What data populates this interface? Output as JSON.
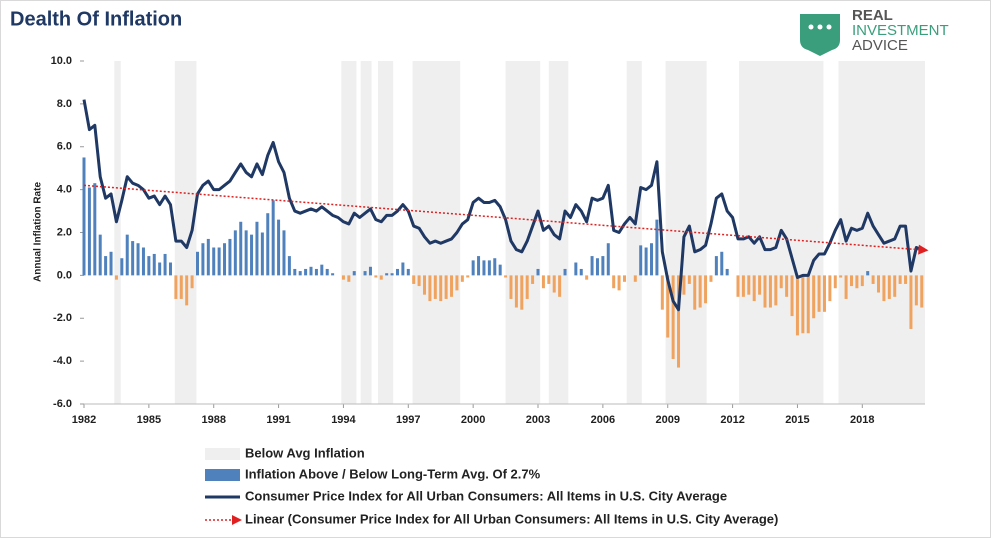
{
  "chart_data": {
    "type": "combo",
    "title": "Dealth Of Inflation",
    "logo": [
      "REAL",
      "INVESTMENT",
      "ADVICE"
    ],
    "y_label": "Annual Inflation Rate",
    "xlim": [
      1982,
      2020.9
    ],
    "xticks": [
      1982,
      1985,
      1988,
      1991,
      1994,
      1997,
      2000,
      2003,
      2006,
      2009,
      2012,
      2015,
      2018
    ],
    "ylim": [
      -6,
      10
    ],
    "yticks": [
      {
        "value": -6,
        "label": "-6.0"
      },
      {
        "value": -4,
        "label": "-4.0"
      },
      {
        "value": -2,
        "label": "-2.0"
      },
      {
        "value": 0,
        "label": "0.0"
      },
      {
        "value": 2,
        "label": "2.0"
      },
      {
        "value": 4,
        "label": "4.0"
      },
      {
        "value": 6,
        "label": "6.0"
      },
      {
        "value": 8,
        "label": "8.0"
      },
      {
        "value": 10,
        "label": "10.0"
      }
    ],
    "shading": {
      "name": "Below Avg Inflation",
      "color": "#efefef",
      "spans": [
        [
          1983.4,
          1983.7
        ],
        [
          1986.2,
          1987.2
        ],
        [
          1993.9,
          1994.6
        ],
        [
          1994.8,
          1995.3
        ],
        [
          1995.6,
          1996.3
        ],
        [
          1997.2,
          1999.4
        ],
        [
          2001.5,
          2003.1
        ],
        [
          2003.5,
          2004.4
        ],
        [
          2007.1,
          2007.8
        ],
        [
          2008.9,
          2010.8
        ],
        [
          2012.3,
          2016.2
        ],
        [
          2016.9,
          2020.9
        ]
      ]
    },
    "x": [
      1982,
      1982.25,
      1982.5,
      1982.75,
      1983,
      1983.25,
      1983.5,
      1983.75,
      1984,
      1984.25,
      1984.5,
      1984.75,
      1985,
      1985.25,
      1985.5,
      1985.75,
      1986,
      1986.25,
      1986.5,
      1986.75,
      1987,
      1987.25,
      1987.5,
      1987.75,
      1988,
      1988.25,
      1988.5,
      1988.75,
      1989,
      1989.25,
      1989.5,
      1989.75,
      1990,
      1990.25,
      1990.5,
      1990.75,
      1991,
      1991.25,
      1991.5,
      1991.75,
      1992,
      1992.25,
      1992.5,
      1992.75,
      1993,
      1993.25,
      1993.5,
      1993.75,
      1994,
      1994.25,
      1994.5,
      1994.75,
      1995,
      1995.25,
      1995.5,
      1995.75,
      1996,
      1996.25,
      1996.5,
      1996.75,
      1997,
      1997.25,
      1997.5,
      1997.75,
      1998,
      1998.25,
      1998.5,
      1998.75,
      1999,
      1999.25,
      1999.5,
      1999.75,
      2000,
      2000.25,
      2000.5,
      2000.75,
      2001,
      2001.25,
      2001.5,
      2001.75,
      2002,
      2002.25,
      2002.5,
      2002.75,
      2003,
      2003.25,
      2003.5,
      2003.75,
      2004,
      2004.25,
      2004.5,
      2004.75,
      2005,
      2005.25,
      2005.5,
      2005.75,
      2006,
      2006.25,
      2006.5,
      2006.75,
      2007,
      2007.25,
      2007.5,
      2007.75,
      2008,
      2008.25,
      2008.5,
      2008.75,
      2009,
      2009.25,
      2009.5,
      2009.75,
      2010,
      2010.25,
      2010.5,
      2010.75,
      2011,
      2011.25,
      2011.5,
      2011.75,
      2012,
      2012.25,
      2012.5,
      2012.75,
      2013,
      2013.25,
      2013.5,
      2013.75,
      2014,
      2014.25,
      2014.5,
      2014.75,
      2015,
      2015.25,
      2015.5,
      2015.75,
      2016,
      2016.25,
      2016.5,
      2016.75,
      2017,
      2017.25,
      2017.5,
      2017.75,
      2018,
      2018.25,
      2018.5,
      2018.75,
      2019,
      2019.25,
      2019.5,
      2019.75,
      2020,
      2020.25,
      2020.5,
      2020.75
    ],
    "series": [
      {
        "name": "Inflation Above / Below Long-Term Avg. Of 2.7%",
        "type": "bar",
        "color": "#4f81bd",
        "negative_color": "#f0a35e",
        "values": [
          5.5,
          4.1,
          4.3,
          1.9,
          0.9,
          1.1,
          -0.2,
          0.8,
          1.9,
          1.6,
          1.5,
          1.3,
          0.9,
          1.0,
          0.6,
          1.0,
          0.6,
          -1.1,
          -1.1,
          -1.4,
          -0.6,
          1.1,
          1.5,
          1.7,
          1.3,
          1.3,
          1.5,
          1.7,
          2.1,
          2.5,
          2.1,
          1.9,
          2.5,
          2.0,
          2.9,
          3.5,
          2.6,
          2.1,
          0.9,
          0.3,
          0.2,
          0.3,
          0.4,
          0.3,
          0.5,
          0.3,
          0.1,
          0.0,
          -0.2,
          -0.3,
          0.2,
          0.0,
          0.2,
          0.4,
          -0.1,
          -0.2,
          0.1,
          0.1,
          0.3,
          0.6,
          0.3,
          -0.4,
          -0.5,
          -0.9,
          -1.2,
          -1.1,
          -1.2,
          -1.1,
          -1.0,
          -0.7,
          -0.3,
          -0.1,
          0.7,
          0.9,
          0.7,
          0.7,
          0.8,
          0.5,
          -0.1,
          -1.1,
          -1.5,
          -1.6,
          -1.1,
          -0.4,
          0.3,
          -0.6,
          -0.4,
          -0.8,
          -1.0,
          0.3,
          0.0,
          0.6,
          0.3,
          -0.2,
          0.9,
          0.8,
          0.9,
          1.5,
          -0.6,
          -0.7,
          -0.3,
          0.0,
          -0.3,
          1.4,
          1.3,
          1.5,
          2.6,
          -1.6,
          -2.9,
          -3.9,
          -4.3,
          -0.9,
          -0.4,
          -1.6,
          -1.5,
          -1.3,
          -0.3,
          0.9,
          1.1,
          0.3,
          0.0,
          -1.0,
          -1.0,
          -0.9,
          -1.2,
          -0.9,
          -1.5,
          -1.5,
          -1.4,
          -0.6,
          -1.0,
          -1.9,
          -2.8,
          -2.7,
          -2.7,
          -2.0,
          -1.7,
          -1.7,
          -1.2,
          -0.6,
          -0.1,
          -1.1,
          -0.5,
          -0.6,
          -0.5,
          0.2,
          -0.4,
          -0.8,
          -1.2,
          -1.1,
          -1.0,
          -0.4,
          -0.4,
          -2.5,
          -1.4,
          -1.5
        ]
      },
      {
        "name": "Consumer Price Index for All Urban Consumers: All Items in U.S. City Average",
        "type": "line",
        "color": "#1f3864",
        "values": [
          8.2,
          6.8,
          7.0,
          4.6,
          3.6,
          3.8,
          2.5,
          3.5,
          4.6,
          4.3,
          4.2,
          4.0,
          3.6,
          3.7,
          3.3,
          3.7,
          3.3,
          1.6,
          1.6,
          1.3,
          2.1,
          3.8,
          4.2,
          4.4,
          4.0,
          4.0,
          4.2,
          4.4,
          4.8,
          5.2,
          4.8,
          4.6,
          5.2,
          4.7,
          5.6,
          6.2,
          5.3,
          4.8,
          3.6,
          3.0,
          2.9,
          3.0,
          3.1,
          3.0,
          3.2,
          3.0,
          2.8,
          2.7,
          2.5,
          2.4,
          2.9,
          2.7,
          2.9,
          3.1,
          2.6,
          2.5,
          2.8,
          2.8,
          3.0,
          3.3,
          3.0,
          2.3,
          2.2,
          1.8,
          1.5,
          1.6,
          1.5,
          1.6,
          1.7,
          2.0,
          2.4,
          2.6,
          3.4,
          3.6,
          3.4,
          3.4,
          3.5,
          3.2,
          2.6,
          1.6,
          1.2,
          1.1,
          1.6,
          2.3,
          3.0,
          2.1,
          2.3,
          1.9,
          1.7,
          3.0,
          2.7,
          3.3,
          3.0,
          2.5,
          3.6,
          3.5,
          3.6,
          4.2,
          2.1,
          2.0,
          2.4,
          2.7,
          2.4,
          4.1,
          4.0,
          4.2,
          5.3,
          1.1,
          -0.2,
          -1.2,
          -1.6,
          1.8,
          2.3,
          1.1,
          1.2,
          1.4,
          2.4,
          3.6,
          3.8,
          3.0,
          2.7,
          1.7,
          1.7,
          1.8,
          1.5,
          1.8,
          1.2,
          1.2,
          1.3,
          2.1,
          1.7,
          0.8,
          -0.1,
          0.0,
          0.0,
          0.7,
          1.0,
          1.0,
          1.5,
          2.1,
          2.6,
          1.6,
          2.2,
          2.1,
          2.2,
          2.9,
          2.3,
          1.9,
          1.5,
          1.6,
          1.7,
          2.3,
          2.3,
          0.2,
          1.3,
          1.2
        ]
      },
      {
        "name": "Linear (Consumer Price Index for All Urban Consumers: All Items in U.S. City Average)",
        "type": "trend",
        "color": "#e02020",
        "x": [
          1982,
          2020.6
        ],
        "values": [
          4.2,
          1.2
        ]
      }
    ]
  }
}
